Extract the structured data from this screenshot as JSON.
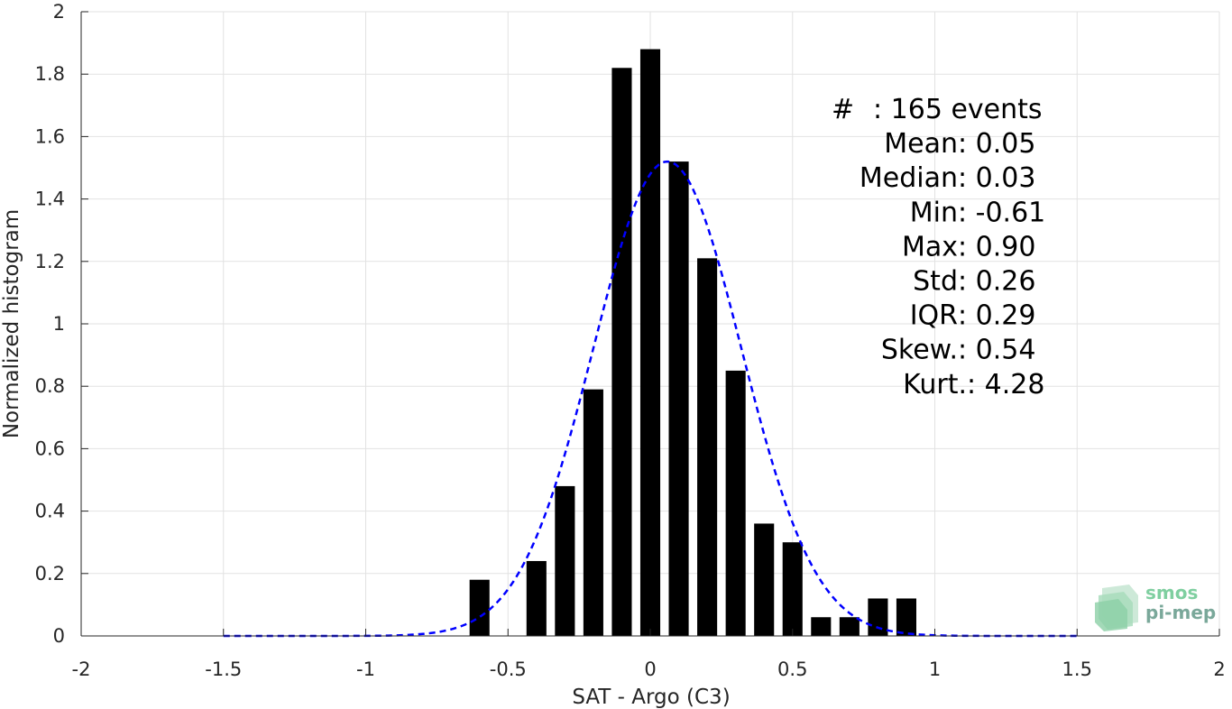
{
  "chart_data": {
    "type": "bar",
    "xlabel": "SAT - Argo (C3)",
    "ylabel": "Normalized histogram",
    "xlim": [
      -2,
      2
    ],
    "ylim": [
      0,
      2
    ],
    "xticks": [
      "-2",
      "-1.5",
      "-1",
      "-0.5",
      "0",
      "0.5",
      "1",
      "1.5",
      "2"
    ],
    "yticks": [
      "0",
      "0.2",
      "0.4",
      "0.6",
      "0.8",
      "1",
      "1.2",
      "1.4",
      "1.6",
      "1.8",
      "2"
    ],
    "grid": true,
    "bars": {
      "x": [
        -0.6,
        -0.4,
        -0.3,
        -0.2,
        -0.1,
        0.0,
        0.1,
        0.2,
        0.3,
        0.4,
        0.5,
        0.6,
        0.7,
        0.8,
        0.9
      ],
      "values": [
        0.18,
        0.24,
        0.48,
        0.79,
        1.82,
        1.88,
        1.52,
        1.21,
        0.85,
        0.36,
        0.3,
        0.06,
        0.06,
        0.12,
        0.12
      ],
      "bar_width": 0.07,
      "color": "#000000"
    },
    "fit_curve": {
      "style": "dashed",
      "color": "#0000ff",
      "mean": 0.06,
      "std": 0.26,
      "peak": 1.52,
      "x_range": [
        -1.5,
        1.5
      ]
    },
    "annotations": [
      {
        "label": "#  ",
        "value": ": 165 events"
      },
      {
        "label": "Mean ",
        "value": ": 0.05"
      },
      {
        "label": "Median ",
        "value": ": 0.03"
      },
      {
        "label": "Min ",
        "value": ": -0.61"
      },
      {
        "label": "Max ",
        "value": ": 0.90"
      },
      {
        "label": "Std ",
        "value": ": 0.26"
      },
      {
        "label": "IQR ",
        "value": ": 0.29"
      },
      {
        "label": "Skew. ",
        "value": ": 0.54"
      },
      {
        "label": "Kurt. ",
        "value": ": 4.28"
      }
    ]
  },
  "logo": {
    "line1": "smos",
    "line2": "pi-mep",
    "color1": "#7fcfa0",
    "color2": "#7aa89a"
  }
}
